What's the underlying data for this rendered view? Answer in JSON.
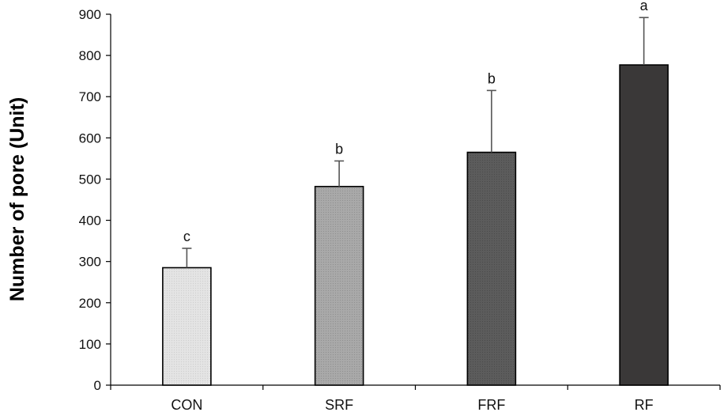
{
  "chart_data": {
    "type": "bar",
    "title": "",
    "xlabel": "",
    "ylabel": "Number of pore (Unit)",
    "ylim": [
      0,
      900
    ],
    "yticks": [
      0,
      100,
      200,
      300,
      400,
      500,
      600,
      700,
      800,
      900
    ],
    "grid": false,
    "categories": [
      "CON",
      "SRF",
      "FRF",
      "RF"
    ],
    "values": [
      285,
      482,
      565,
      777
    ],
    "error_plus": [
      47,
      62,
      150,
      115
    ],
    "significance_labels": [
      "c",
      "b",
      "b",
      "a"
    ],
    "bar_colors": [
      "#e4e4e4",
      "#a9a9a9",
      "#5c5c5c",
      "#3a3838"
    ]
  }
}
